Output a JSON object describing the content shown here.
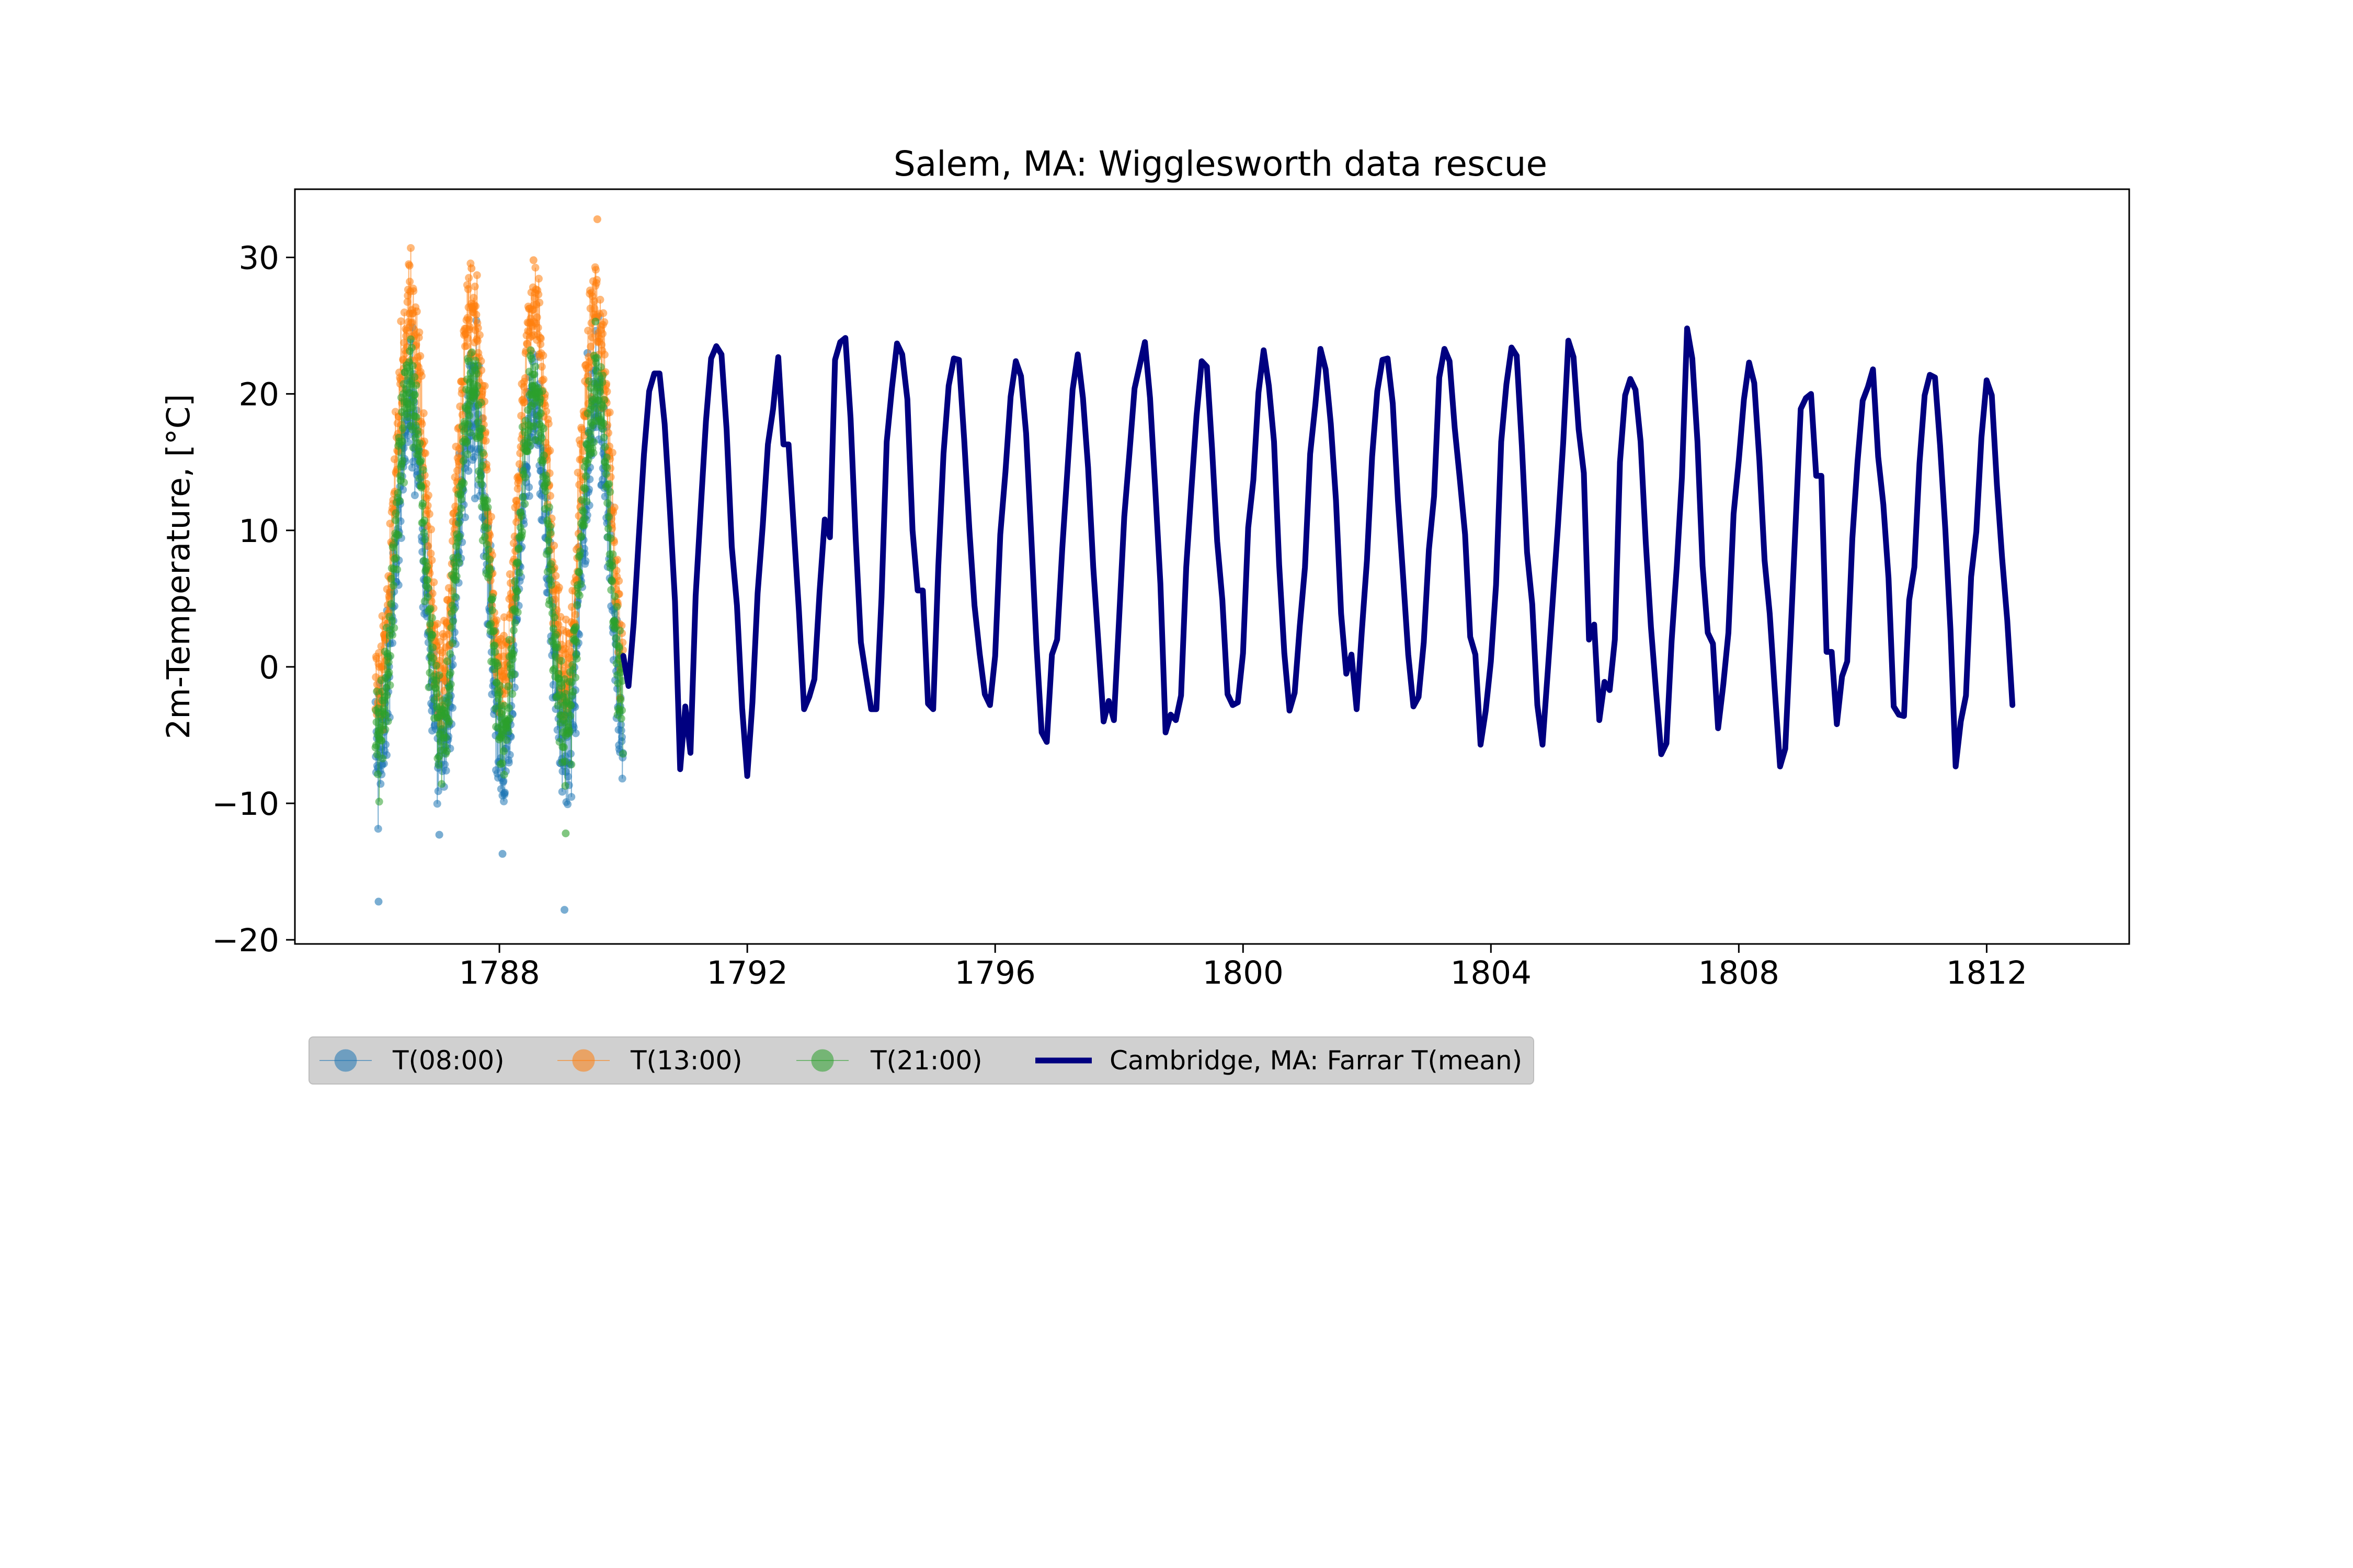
{
  "chart_data": {
    "type": "line",
    "title": "Salem, MA: Wigglesworth data rescue",
    "xlabel": "",
    "ylabel": "2m-Temperature, [°C]",
    "xlim": [
      1784.7,
      1814.3
    ],
    "ylim": [
      -20.3,
      35.0
    ],
    "x_ticks": [
      1788,
      1792,
      1796,
      1800,
      1804,
      1808,
      1812
    ],
    "x_tick_labels": [
      "1788",
      "1792",
      "1796",
      "1800",
      "1804",
      "1808",
      "1812"
    ],
    "y_ticks": [
      -20,
      -10,
      0,
      10,
      20,
      30
    ],
    "y_tick_labels": [
      "−20",
      "−10",
      "0",
      "10",
      "20",
      "30"
    ],
    "grid": false,
    "legend_placement": "below-left",
    "series": [
      {
        "name": "T(08:00)",
        "kind": "points",
        "color": "#1f77b4",
        "start": 1786.0,
        "end": 1790.0,
        "monthly_mean": [
          -6.5,
          -5.5,
          -1.5,
          5.5,
          11.5,
          16.5,
          19.5,
          18.5,
          14.0,
          7.5,
          2.0,
          -3.5
        ],
        "spread": 4.5,
        "extremes": [
          [
            1786.05,
            -17.2
          ],
          [
            1787.03,
            -12.3
          ],
          [
            1788.05,
            -13.7
          ],
          [
            1789.05,
            -17.8
          ],
          [
            1789.42,
            23.0
          ]
        ]
      },
      {
        "name": "T(13:00)",
        "kind": "points",
        "color": "#ff7f0e",
        "start": 1786.0,
        "end": 1790.0,
        "monthly_mean": [
          -1.5,
          0.0,
          4.5,
          12.5,
          18.5,
          24.0,
          26.5,
          25.5,
          21.0,
          14.5,
          7.0,
          1.5
        ],
        "spread": 3.5,
        "extremes": [
          [
            1786.55,
            29.4
          ],
          [
            1787.55,
            29.2
          ],
          [
            1788.55,
            29.8
          ],
          [
            1789.58,
            32.8
          ],
          [
            1786.1,
            -3.5
          ]
        ]
      },
      {
        "name": "T(21:00)",
        "kind": "points",
        "color": "#2ca02c",
        "start": 1786.0,
        "end": 1790.0,
        "monthly_mean": [
          -5.0,
          -4.0,
          0.0,
          7.0,
          13.0,
          18.0,
          20.5,
          19.5,
          15.5,
          9.0,
          3.0,
          -2.0
        ],
        "spread": 3.5,
        "extremes": [
          [
            1786.5,
            22.1
          ],
          [
            1787.5,
            22.4
          ],
          [
            1788.5,
            22.8
          ],
          [
            1789.55,
            25.3
          ],
          [
            1789.07,
            -12.2
          ]
        ]
      },
      {
        "name": "Cambridge, MA: Farrar T(mean)",
        "kind": "line",
        "color": "#000080",
        "x_start": 1790.0,
        "x_step": 0.08333,
        "values": [
          0.8,
          -1.4,
          3.2,
          9.5,
          15.6,
          20.2,
          21.5,
          21.5,
          17.8,
          11.6,
          4.8,
          -7.5,
          -2.9,
          -6.3,
          5.2,
          11.7,
          18.0,
          22.6,
          23.5,
          22.9,
          17.4,
          8.8,
          4.5,
          -3.0,
          -8.0,
          -2.6,
          5.4,
          10.4,
          16.3,
          18.9,
          22.7,
          16.3,
          16.3,
          10.2,
          4.1,
          -3.1,
          -2.2,
          -0.9,
          5.5,
          10.8,
          9.5,
          22.5,
          23.8,
          24.1,
          18.2,
          9.4,
          1.8,
          -0.7,
          -3.1,
          -3.1,
          5.1,
          16.5,
          20.4,
          23.7,
          22.9,
          19.6,
          10.0,
          5.6,
          5.6,
          -2.7,
          -3.1,
          7.4,
          15.6,
          20.6,
          22.6,
          22.5,
          16.7,
          10.1,
          4.5,
          1.0,
          -2.0,
          -2.8,
          0.8,
          9.7,
          14.3,
          19.8,
          22.4,
          21.3,
          17.1,
          9.5,
          1.6,
          -4.8,
          -5.5,
          0.9,
          2.0,
          8.7,
          14.4,
          20.3,
          22.9,
          19.7,
          14.6,
          7.3,
          1.7,
          -4.0,
          -2.5,
          -3.9,
          3.5,
          11.0,
          15.6,
          20.4,
          22.1,
          23.8,
          19.7,
          13.1,
          6.1,
          -4.8,
          -3.5,
          -3.9,
          -2.1,
          7.3,
          13.0,
          18.4,
          22.4,
          22.0,
          16.0,
          9.2,
          4.9,
          -2.0,
          -2.8,
          -2.6,
          1.0,
          10.2,
          13.7,
          20.1,
          23.2,
          20.6,
          16.5,
          7.5,
          1.0,
          -3.2,
          -1.9,
          3.0,
          7.3,
          15.6,
          19.2,
          23.3,
          21.8,
          17.8,
          12.2,
          3.9,
          -0.5,
          0.9,
          -3.1,
          2.6,
          7.8,
          15.4,
          20.2,
          22.5,
          22.6,
          19.3,
          12.2,
          6.6,
          0.9,
          -2.9,
          -2.2,
          1.8,
          8.6,
          12.5,
          21.2,
          23.3,
          22.4,
          17.5,
          13.7,
          9.7,
          2.2,
          0.9,
          -5.7,
          -3.2,
          0.4,
          6.0,
          16.5,
          20.7,
          23.4,
          22.8,
          16.2,
          8.4,
          4.6,
          -2.8,
          -5.7,
          -0.4,
          5.0,
          10.4,
          16.4,
          23.9,
          22.7,
          17.4,
          14.2,
          2.0,
          3.1,
          -3.9,
          -1.1,
          -1.7,
          2.0,
          15.0,
          19.9,
          21.1,
          20.3,
          16.5,
          9.1,
          2.9,
          -1.9,
          -6.4,
          -5.6,
          1.9,
          7.4,
          13.9,
          24.8,
          22.6,
          16.5,
          7.4,
          2.5,
          1.7,
          -4.5,
          -1.3,
          2.5,
          11.2,
          15.1,
          19.6,
          22.3,
          20.8,
          15.1,
          7.8,
          3.9,
          -1.8,
          -7.3,
          -6.0,
          2.0,
          10.4,
          18.9,
          19.7,
          20.0,
          14.0,
          14.0,
          1.1,
          1.1,
          -4.2,
          -0.7,
          0.4,
          9.4,
          15.0,
          19.5,
          20.5,
          21.8,
          15.4,
          11.9,
          6.5,
          -2.9,
          -3.5,
          -3.6,
          4.9,
          7.3,
          14.9,
          19.9,
          21.4,
          21.2,
          16.2,
          10.1,
          2.7,
          -7.3,
          -4.0,
          -2.1,
          6.6,
          9.9,
          16.8,
          21.0,
          19.9,
          13.3,
          8.0,
          3.4,
          -2.8
        ]
      }
    ]
  }
}
